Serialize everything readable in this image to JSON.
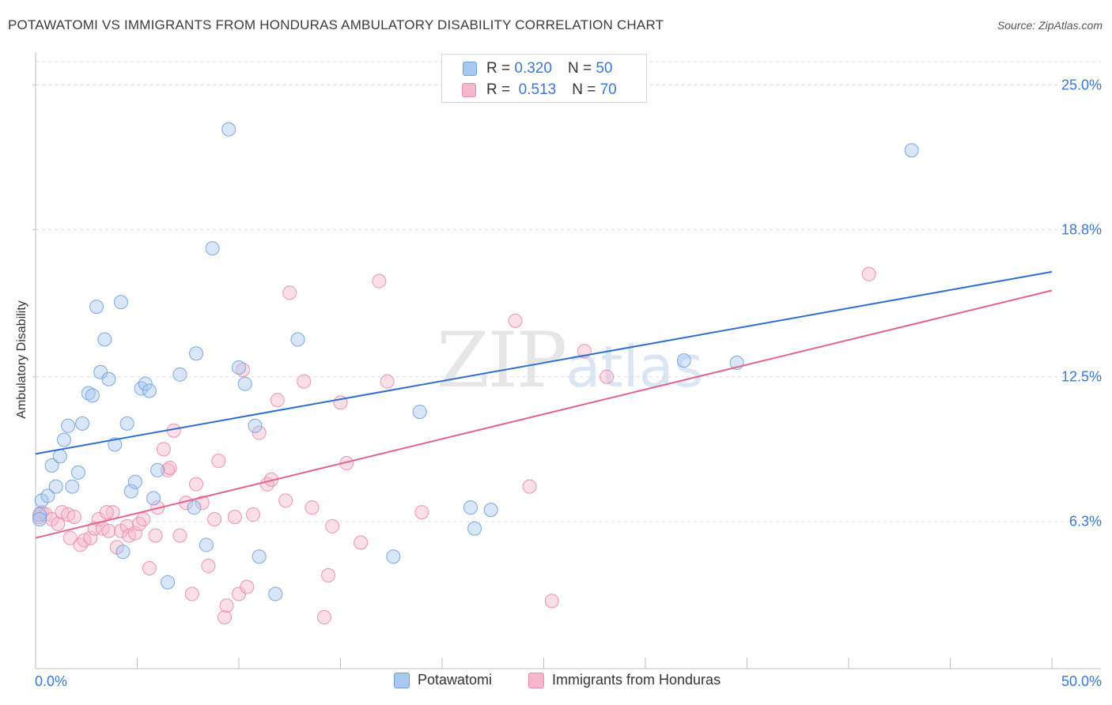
{
  "title": "POTAWATOMI VS IMMIGRANTS FROM HONDURAS AMBULATORY DISABILITY CORRELATION CHART",
  "source": "Source: ZipAtlas.com",
  "watermark": {
    "zip": "ZIP",
    "atlas": "atlas"
  },
  "legend": {
    "rows": [
      {
        "r_label": "R =",
        "r_value": "0.320",
        "n_label": "N =",
        "n_value": "50"
      },
      {
        "r_label": "R =",
        "r_value": "0.513",
        "n_label": "N =",
        "n_value": "70"
      }
    ]
  },
  "chart_data": {
    "type": "scatter",
    "title": "POTAWATOMI VS IMMIGRANTS FROM HONDURAS AMBULATORY DISABILITY CORRELATION CHART",
    "xlabel": "",
    "ylabel": "Ambulatory Disability",
    "xlim": [
      0,
      50
    ],
    "ylim": [
      0,
      26
    ],
    "x_tick_labels": [
      "0.0%",
      "50.0%"
    ],
    "y_ticks": [
      6.3,
      12.5,
      18.8,
      25.0
    ],
    "y_tick_labels": [
      "6.3%",
      "12.5%",
      "18.8%",
      "25.0%"
    ],
    "grid": true,
    "legend_position": "top-center",
    "colors": {
      "potawatomi_fill": "#a9c8f0",
      "potawatomi_stroke": "#6fa0dc",
      "potawatomi_line": "#2f6fcc",
      "honduras_fill": "#f6b9cb",
      "honduras_stroke": "#e98aa8",
      "honduras_line": "#e0648e",
      "axis_label": "#3a78d4"
    },
    "series": [
      {
        "name": "Potawatomi",
        "trend": {
          "x": [
            0,
            50
          ],
          "y": [
            9.2,
            17.0
          ]
        },
        "points": [
          [
            0.2,
            6.6
          ],
          [
            0.3,
            7.2
          ],
          [
            0.6,
            7.4
          ],
          [
            0.8,
            8.7
          ],
          [
            1.0,
            7.8
          ],
          [
            1.2,
            9.1
          ],
          [
            1.4,
            9.8
          ],
          [
            1.6,
            10.4
          ],
          [
            1.8,
            7.8
          ],
          [
            2.1,
            8.4
          ],
          [
            2.3,
            10.5
          ],
          [
            2.6,
            11.8
          ],
          [
            2.8,
            11.7
          ],
          [
            3.0,
            15.5
          ],
          [
            3.2,
            12.7
          ],
          [
            3.4,
            14.1
          ],
          [
            3.6,
            12.4
          ],
          [
            3.9,
            9.6
          ],
          [
            4.2,
            15.7
          ],
          [
            4.5,
            10.5
          ],
          [
            4.7,
            7.6
          ],
          [
            4.9,
            8.0
          ],
          [
            5.2,
            12.0
          ],
          [
            5.4,
            12.2
          ],
          [
            5.6,
            11.9
          ],
          [
            5.8,
            7.3
          ],
          [
            6.0,
            8.5
          ],
          [
            6.5,
            3.7
          ],
          [
            7.1,
            12.6
          ],
          [
            7.8,
            6.9
          ],
          [
            7.9,
            13.5
          ],
          [
            8.4,
            5.3
          ],
          [
            8.7,
            18.0
          ],
          [
            9.5,
            23.1
          ],
          [
            10.0,
            12.9
          ],
          [
            10.3,
            12.2
          ],
          [
            10.8,
            10.4
          ],
          [
            11.0,
            4.8
          ],
          [
            11.8,
            3.2
          ],
          [
            12.9,
            14.1
          ],
          [
            4.3,
            5.0
          ],
          [
            17.6,
            4.8
          ],
          [
            18.9,
            11.0
          ],
          [
            21.4,
            6.9
          ],
          [
            21.6,
            6.0
          ],
          [
            22.4,
            6.8
          ],
          [
            31.9,
            13.2
          ],
          [
            34.5,
            13.1
          ],
          [
            43.1,
            22.2
          ],
          [
            0.2,
            6.4
          ]
        ]
      },
      {
        "name": "Immigrants from Honduras",
        "trend": {
          "x": [
            0,
            50
          ],
          "y": [
            5.6,
            16.2
          ]
        },
        "points": [
          [
            0.2,
            6.5
          ],
          [
            0.3,
            6.7
          ],
          [
            0.5,
            6.6
          ],
          [
            0.8,
            6.4
          ],
          [
            1.1,
            6.2
          ],
          [
            1.3,
            6.7
          ],
          [
            1.6,
            6.6
          ],
          [
            1.7,
            5.6
          ],
          [
            1.9,
            6.5
          ],
          [
            2.2,
            5.3
          ],
          [
            2.4,
            5.5
          ],
          [
            2.7,
            5.6
          ],
          [
            2.9,
            6.0
          ],
          [
            3.1,
            6.4
          ],
          [
            3.3,
            6.0
          ],
          [
            3.6,
            5.9
          ],
          [
            3.8,
            6.7
          ],
          [
            4.0,
            5.2
          ],
          [
            4.2,
            5.9
          ],
          [
            4.5,
            6.1
          ],
          [
            4.6,
            5.7
          ],
          [
            4.9,
            5.8
          ],
          [
            5.1,
            6.2
          ],
          [
            5.3,
            6.4
          ],
          [
            5.6,
            4.3
          ],
          [
            5.9,
            5.7
          ],
          [
            6.0,
            6.9
          ],
          [
            6.3,
            9.4
          ],
          [
            6.5,
            8.5
          ],
          [
            6.6,
            8.6
          ],
          [
            6.8,
            10.2
          ],
          [
            7.1,
            5.7
          ],
          [
            7.4,
            7.1
          ],
          [
            7.7,
            3.2
          ],
          [
            7.9,
            7.9
          ],
          [
            8.2,
            7.1
          ],
          [
            8.5,
            4.4
          ],
          [
            8.8,
            6.4
          ],
          [
            9.0,
            8.9
          ],
          [
            9.3,
            2.2
          ],
          [
            9.4,
            2.7
          ],
          [
            9.8,
            6.5
          ],
          [
            10.0,
            3.2
          ],
          [
            10.2,
            12.8
          ],
          [
            10.4,
            3.5
          ],
          [
            10.7,
            6.6
          ],
          [
            11.0,
            10.1
          ],
          [
            11.4,
            7.9
          ],
          [
            11.6,
            8.1
          ],
          [
            11.9,
            11.5
          ],
          [
            12.3,
            7.2
          ],
          [
            12.5,
            16.1
          ],
          [
            13.2,
            12.3
          ],
          [
            13.6,
            6.9
          ],
          [
            14.2,
            2.2
          ],
          [
            14.4,
            4.0
          ],
          [
            14.6,
            6.1
          ],
          [
            15.0,
            11.4
          ],
          [
            15.3,
            8.8
          ],
          [
            16.0,
            5.4
          ],
          [
            16.9,
            16.6
          ],
          [
            17.3,
            12.3
          ],
          [
            19.0,
            6.7
          ],
          [
            23.6,
            14.9
          ],
          [
            24.3,
            7.8
          ],
          [
            25.4,
            2.9
          ],
          [
            27.0,
            13.6
          ],
          [
            28.1,
            12.5
          ],
          [
            41.0,
            16.9
          ],
          [
            3.5,
            6.7
          ]
        ]
      }
    ]
  }
}
